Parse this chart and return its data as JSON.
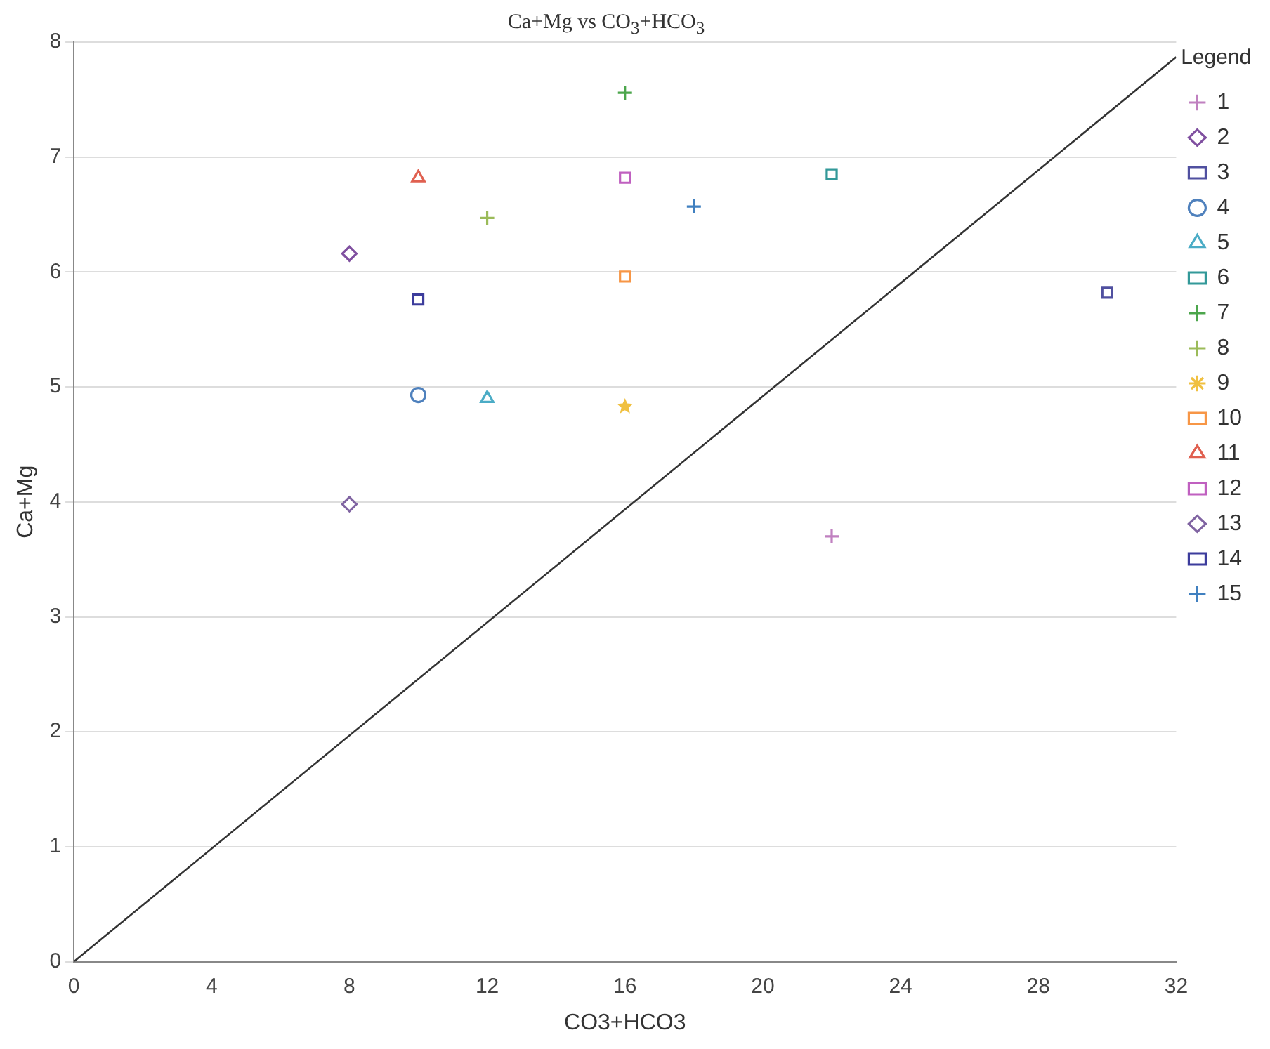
{
  "chart_data": {
    "type": "scatter",
    "title": "Ca+Mg vs CO$_{3}$+HCO$_{3}$",
    "xlabel": "CO3+HCO3",
    "ylabel": "Ca+Mg",
    "legend_title": "Legend",
    "legend": "right",
    "grid": "y",
    "xlim": [
      0,
      32
    ],
    "xticks": [
      0,
      4,
      8,
      12,
      16,
      20,
      24,
      28,
      32
    ],
    "ylim": [
      0,
      8
    ],
    "yticks": [
      0,
      1,
      2,
      3,
      4,
      5,
      6,
      7,
      8
    ],
    "series": [
      {
        "name": "1",
        "color": "#c080c0",
        "marker": "cross",
        "x": [
          22
        ],
        "values": [
          3.7
        ]
      },
      {
        "name": "2",
        "color": "#8050a0",
        "marker": "diamond",
        "x": [
          8
        ],
        "values": [
          6.16
        ]
      },
      {
        "name": "3",
        "color": "#5050a0",
        "marker": "square",
        "x": [
          30
        ],
        "values": [
          5.82
        ]
      },
      {
        "name": "4",
        "color": "#4f81bd",
        "marker": "circle",
        "x": [
          10
        ],
        "values": [
          4.93
        ]
      },
      {
        "name": "5",
        "color": "#4bacc6",
        "marker": "triangle",
        "x": [
          12
        ],
        "values": [
          4.9
        ]
      },
      {
        "name": "6",
        "color": "#339999",
        "marker": "square",
        "x": [
          22
        ],
        "values": [
          6.85
        ]
      },
      {
        "name": "7",
        "color": "#4ca64c",
        "marker": "cross",
        "x": [
          16
        ],
        "values": [
          7.56
        ]
      },
      {
        "name": "8",
        "color": "#9bbb59",
        "marker": "cross",
        "x": [
          12
        ],
        "values": [
          6.47
        ]
      },
      {
        "name": "9",
        "color": "#f0c040",
        "marker": "star",
        "x": [
          16
        ],
        "values": [
          4.83
        ]
      },
      {
        "name": "10",
        "color": "#f79646",
        "marker": "square",
        "x": [
          16
        ],
        "values": [
          5.96
        ]
      },
      {
        "name": "11",
        "color": "#e06050",
        "marker": "triangle",
        "x": [
          10
        ],
        "values": [
          6.82
        ]
      },
      {
        "name": "12",
        "color": "#c060c0",
        "marker": "square",
        "x": [
          16
        ],
        "values": [
          6.82
        ]
      },
      {
        "name": "13",
        "color": "#8064a2",
        "marker": "diamond",
        "x": [
          8
        ],
        "values": [
          3.98
        ]
      },
      {
        "name": "14",
        "color": "#3c3c9c",
        "marker": "square",
        "x": [
          10
        ],
        "values": [
          5.76
        ]
      },
      {
        "name": "15",
        "color": "#4080c0",
        "marker": "cross",
        "x": [
          18
        ],
        "values": [
          6.57
        ]
      },
      {
        "type": "line",
        "color": "#333333",
        "marker": "none",
        "x": [
          0,
          32
        ],
        "values": [
          0,
          7.87
        ]
      }
    ]
  }
}
